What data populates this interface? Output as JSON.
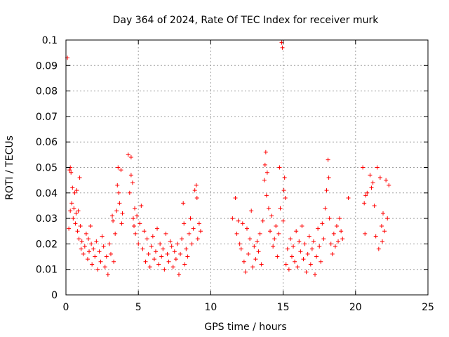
{
  "chart_data": {
    "type": "scatter",
    "title": "Day 364 of 2024, Rate Of TEC Index for receiver murk",
    "xlabel": "GPS time / hours",
    "ylabel": "ROTI / TECUs",
    "xlim": [
      0,
      25
    ],
    "ylim": [
      0,
      0.1
    ],
    "xticks": [
      0,
      5,
      10,
      15,
      20,
      25
    ],
    "yticks": [
      0,
      0.01,
      0.02,
      0.03,
      0.04,
      0.05,
      0.06,
      0.07,
      0.08,
      0.09,
      0.1
    ],
    "xtick_labels": [
      "0",
      "5",
      "10",
      "15",
      "20",
      "25"
    ],
    "ytick_labels": [
      "0",
      "0.01",
      "0.02",
      "0.03",
      "0.04",
      "0.05",
      "0.06",
      "0.07",
      "0.08",
      "0.09",
      "0.1"
    ],
    "grid": true,
    "legend": "none",
    "marker": "+",
    "color": "#ff0000",
    "series": [
      {
        "points": [
          [
            0.1,
            0.093
          ],
          [
            0.2,
            0.026
          ],
          [
            0.25,
            0.049
          ],
          [
            0.3,
            0.05
          ],
          [
            0.35,
            0.048
          ],
          [
            0.3,
            0.033
          ],
          [
            0.4,
            0.036
          ],
          [
            0.45,
            0.042
          ],
          [
            0.5,
            0.03
          ],
          [
            0.55,
            0.034
          ],
          [
            0.6,
            0.04
          ],
          [
            0.65,
            0.028
          ],
          [
            0.7,
            0.032
          ],
          [
            0.75,
            0.041
          ],
          [
            0.8,
            0.025
          ],
          [
            0.85,
            0.033
          ],
          [
            0.9,
            0.022
          ],
          [
            0.95,
            0.046
          ],
          [
            1.0,
            0.027
          ],
          [
            1.05,
            0.018
          ],
          [
            1.1,
            0.021
          ],
          [
            1.2,
            0.016
          ],
          [
            1.3,
            0.019
          ],
          [
            1.4,
            0.024
          ],
          [
            1.5,
            0.014
          ],
          [
            1.55,
            0.022
          ],
          [
            1.6,
            0.017
          ],
          [
            1.7,
            0.027
          ],
          [
            1.75,
            0.02
          ],
          [
            1.8,
            0.012
          ],
          [
            1.9,
            0.018
          ],
          [
            2.0,
            0.015
          ],
          [
            2.1,
            0.021
          ],
          [
            2.2,
            0.01
          ],
          [
            2.3,
            0.017
          ],
          [
            2.4,
            0.013
          ],
          [
            2.5,
            0.023
          ],
          [
            2.6,
            0.019
          ],
          [
            2.7,
            0.011
          ],
          [
            2.8,
            0.015
          ],
          [
            2.9,
            0.008
          ],
          [
            3.0,
            0.02
          ],
          [
            3.1,
            0.016
          ],
          [
            3.2,
            0.031
          ],
          [
            3.25,
            0.029
          ],
          [
            3.3,
            0.013
          ],
          [
            3.4,
            0.024
          ],
          [
            3.5,
            0.033
          ],
          [
            3.55,
            0.043
          ],
          [
            3.6,
            0.05
          ],
          [
            3.65,
            0.04
          ],
          [
            3.7,
            0.036
          ],
          [
            3.8,
            0.049
          ],
          [
            3.85,
            0.028
          ],
          [
            3.9,
            0.032
          ],
          [
            4.3,
            0.055
          ],
          [
            4.5,
            0.054
          ],
          [
            4.4,
            0.04
          ],
          [
            4.5,
            0.047
          ],
          [
            4.6,
            0.044
          ],
          [
            4.65,
            0.03
          ],
          [
            4.7,
            0.027
          ],
          [
            4.75,
            0.034
          ],
          [
            4.8,
            0.024
          ],
          [
            4.9,
            0.031
          ],
          [
            5.0,
            0.02
          ],
          [
            5.1,
            0.028
          ],
          [
            5.2,
            0.035
          ],
          [
            5.3,
            0.018
          ],
          [
            5.4,
            0.025
          ],
          [
            5.5,
            0.013
          ],
          [
            5.6,
            0.022
          ],
          [
            5.7,
            0.016
          ],
          [
            5.8,
            0.011
          ],
          [
            5.9,
            0.019
          ],
          [
            6.0,
            0.023
          ],
          [
            6.1,
            0.014
          ],
          [
            6.2,
            0.017
          ],
          [
            6.3,
            0.026
          ],
          [
            6.4,
            0.012
          ],
          [
            6.5,
            0.02
          ],
          [
            6.6,
            0.015
          ],
          [
            6.7,
            0.018
          ],
          [
            6.8,
            0.01
          ],
          [
            6.9,
            0.024
          ],
          [
            7.0,
            0.016
          ],
          [
            7.1,
            0.013
          ],
          [
            7.2,
            0.021
          ],
          [
            7.3,
            0.019
          ],
          [
            7.4,
            0.011
          ],
          [
            7.5,
            0.017
          ],
          [
            7.6,
            0.014
          ],
          [
            7.7,
            0.02
          ],
          [
            7.8,
            0.008
          ],
          [
            7.9,
            0.016
          ],
          [
            8.0,
            0.022
          ],
          [
            8.1,
            0.036
          ],
          [
            8.15,
            0.028
          ],
          [
            8.2,
            0.012
          ],
          [
            8.3,
            0.018
          ],
          [
            8.4,
            0.015
          ],
          [
            8.5,
            0.024
          ],
          [
            8.6,
            0.03
          ],
          [
            8.7,
            0.02
          ],
          [
            8.8,
            0.026
          ],
          [
            8.9,
            0.041
          ],
          [
            9.0,
            0.043
          ],
          [
            9.05,
            0.038
          ],
          [
            9.1,
            0.022
          ],
          [
            9.2,
            0.028
          ],
          [
            9.3,
            0.025
          ],
          [
            11.5,
            0.03
          ],
          [
            11.7,
            0.038
          ],
          [
            11.8,
            0.024
          ],
          [
            11.9,
            0.029
          ],
          [
            12.0,
            0.02
          ],
          [
            12.1,
            0.018
          ],
          [
            12.2,
            0.028
          ],
          [
            12.3,
            0.013
          ],
          [
            12.4,
            0.009
          ],
          [
            12.5,
            0.026
          ],
          [
            12.6,
            0.016
          ],
          [
            12.7,
            0.022
          ],
          [
            12.8,
            0.033
          ],
          [
            12.9,
            0.011
          ],
          [
            13.0,
            0.019
          ],
          [
            13.1,
            0.014
          ],
          [
            13.2,
            0.021
          ],
          [
            13.3,
            0.017
          ],
          [
            13.4,
            0.024
          ],
          [
            13.5,
            0.012
          ],
          [
            13.6,
            0.029
          ],
          [
            13.7,
            0.045
          ],
          [
            13.75,
            0.051
          ],
          [
            13.8,
            0.056
          ],
          [
            13.85,
            0.039
          ],
          [
            13.9,
            0.048
          ],
          [
            14.0,
            0.034
          ],
          [
            14.1,
            0.025
          ],
          [
            14.2,
            0.031
          ],
          [
            14.3,
            0.019
          ],
          [
            14.4,
            0.022
          ],
          [
            14.5,
            0.027
          ],
          [
            14.6,
            0.015
          ],
          [
            14.7,
            0.024
          ],
          [
            14.75,
            0.05
          ],
          [
            14.8,
            0.034
          ],
          [
            14.9,
            0.099
          ],
          [
            14.95,
            0.097
          ],
          [
            15.0,
            0.029
          ],
          [
            15.05,
            0.041
          ],
          [
            15.1,
            0.046
          ],
          [
            15.15,
            0.038
          ],
          [
            15.2,
            0.012
          ],
          [
            15.3,
            0.018
          ],
          [
            15.4,
            0.01
          ],
          [
            15.5,
            0.022
          ],
          [
            15.6,
            0.015
          ],
          [
            15.7,
            0.019
          ],
          [
            15.8,
            0.013
          ],
          [
            15.9,
            0.025
          ],
          [
            16.0,
            0.011
          ],
          [
            16.1,
            0.021
          ],
          [
            16.2,
            0.017
          ],
          [
            16.3,
            0.027
          ],
          [
            16.4,
            0.014
          ],
          [
            16.5,
            0.02
          ],
          [
            16.6,
            0.009
          ],
          [
            16.7,
            0.016
          ],
          [
            16.8,
            0.023
          ],
          [
            16.9,
            0.012
          ],
          [
            17.0,
            0.018
          ],
          [
            17.1,
            0.021
          ],
          [
            17.2,
            0.008
          ],
          [
            17.3,
            0.015
          ],
          [
            17.4,
            0.026
          ],
          [
            17.5,
            0.019
          ],
          [
            17.6,
            0.013
          ],
          [
            17.7,
            0.028
          ],
          [
            17.8,
            0.022
          ],
          [
            17.9,
            0.034
          ],
          [
            18.0,
            0.041
          ],
          [
            18.1,
            0.053
          ],
          [
            18.15,
            0.046
          ],
          [
            18.2,
            0.03
          ],
          [
            18.3,
            0.02
          ],
          [
            18.4,
            0.016
          ],
          [
            18.5,
            0.024
          ],
          [
            18.6,
            0.019
          ],
          [
            18.7,
            0.027
          ],
          [
            18.8,
            0.021
          ],
          [
            18.9,
            0.03
          ],
          [
            19.0,
            0.025
          ],
          [
            19.1,
            0.022
          ],
          [
            19.5,
            0.038
          ],
          [
            20.5,
            0.05
          ],
          [
            20.6,
            0.036
          ],
          [
            20.7,
            0.039
          ],
          [
            20.65,
            0.024
          ],
          [
            20.8,
            0.04
          ],
          [
            21.0,
            0.047
          ],
          [
            21.1,
            0.042
          ],
          [
            21.2,
            0.044
          ],
          [
            21.3,
            0.035
          ],
          [
            21.4,
            0.023
          ],
          [
            21.5,
            0.05
          ],
          [
            21.6,
            0.018
          ],
          [
            21.7,
            0.046
          ],
          [
            21.8,
            0.027
          ],
          [
            21.85,
            0.021
          ],
          [
            21.9,
            0.032
          ],
          [
            22.0,
            0.025
          ],
          [
            22.1,
            0.045
          ],
          [
            22.2,
            0.03
          ],
          [
            22.3,
            0.043
          ]
        ]
      }
    ]
  }
}
